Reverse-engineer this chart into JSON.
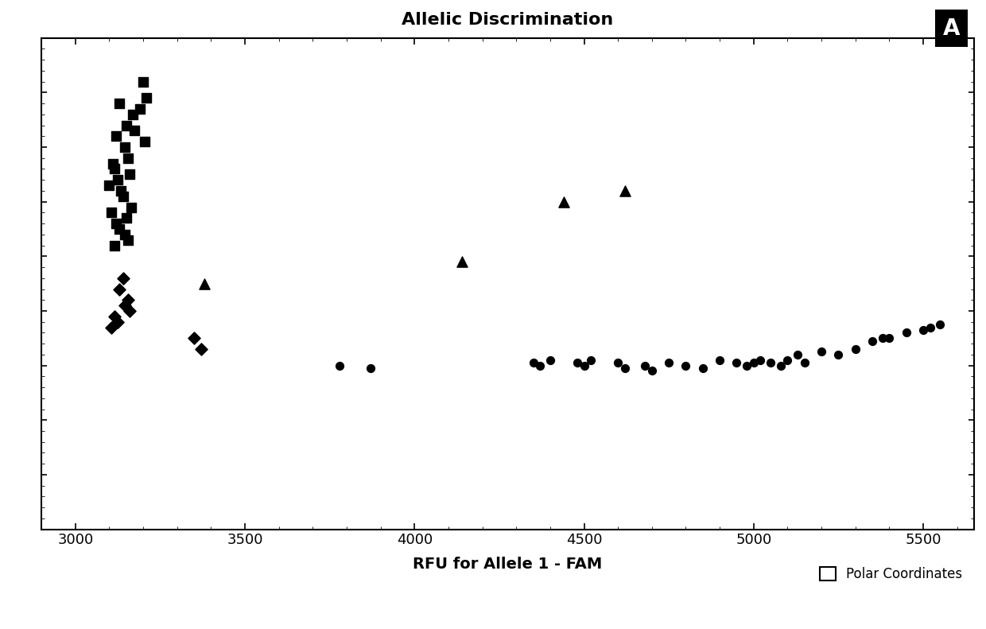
{
  "title": "Allelic Discrimination",
  "xlabel": "RFU for Allele 1 - FAM",
  "legend_label": "Polar Coordinates",
  "xlim": [
    2900,
    5650
  ],
  "ylim": [
    0,
    9000
  ],
  "xticks": [
    3000,
    3500,
    4000,
    4500,
    5000,
    5500
  ],
  "background_color": "#ffffff",
  "plot_bg_color": "#ffffff",
  "squares": {
    "x": [
      3130,
      3150,
      3120,
      3145,
      3155,
      3110,
      3160,
      3115,
      3125,
      3135,
      3140,
      3165,
      3105,
      3150,
      3120,
      3130,
      3145,
      3155,
      3115,
      3170,
      3200,
      3210,
      3190,
      3205,
      3100,
      3175
    ],
    "y": [
      7800,
      7400,
      7200,
      7000,
      6800,
      6700,
      6500,
      6600,
      6400,
      6200,
      6100,
      5900,
      5800,
      5700,
      5600,
      5500,
      5400,
      5300,
      5200,
      7600,
      8200,
      7900,
      7700,
      7100,
      6300,
      7300
    ],
    "color": "#000000",
    "marker": "s",
    "size": 70
  },
  "triangles": {
    "x": [
      3380,
      4140,
      4440,
      4620
    ],
    "y": [
      4500,
      4900,
      6000,
      6200
    ],
    "color": "#000000",
    "marker": "^",
    "size": 90
  },
  "diamonds": {
    "x": [
      3140,
      3130,
      3155,
      3145,
      3160,
      3115,
      3125,
      3105,
      3350,
      3370
    ],
    "y": [
      4600,
      4400,
      4200,
      4100,
      4000,
      3900,
      3800,
      3700,
      3500,
      3300
    ],
    "color": "#000000",
    "marker": "D",
    "size": 60
  },
  "circles": {
    "x": [
      3780,
      3870,
      4350,
      4370,
      4400,
      4480,
      4500,
      4520,
      4600,
      4620,
      4680,
      4700,
      4750,
      4800,
      4850,
      4900,
      4950,
      4980,
      5000,
      5020,
      5050,
      5080,
      5100,
      5130,
      5150,
      5200,
      5250,
      5300,
      5350,
      5380,
      5400,
      5450,
      5500,
      5520,
      5550
    ],
    "y": [
      3000,
      2950,
      3050,
      3000,
      3100,
      3050,
      3000,
      3100,
      3050,
      2950,
      3000,
      2900,
      3050,
      3000,
      2950,
      3100,
      3050,
      3000,
      3050,
      3100,
      3050,
      3000,
      3100,
      3200,
      3050,
      3250,
      3200,
      3300,
      3450,
      3500,
      3500,
      3600,
      3650,
      3700,
      3750
    ],
    "color": "#000000",
    "marker": "o",
    "size": 50
  }
}
